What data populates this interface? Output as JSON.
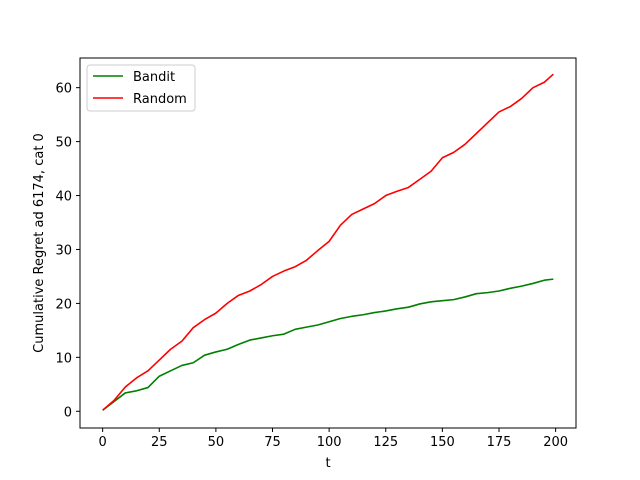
{
  "chart_data": {
    "type": "line",
    "title": "",
    "xlabel": "t",
    "ylabel": "Cumulative Regret ad 6174, cat 0",
    "xlim": [
      -10,
      209
    ],
    "ylim": [
      -3.1,
      65.5
    ],
    "xticks": [
      0,
      25,
      50,
      75,
      100,
      125,
      150,
      175,
      200
    ],
    "yticks": [
      0,
      10,
      20,
      30,
      40,
      50,
      60
    ],
    "grid": false,
    "legend_position": "upper-left",
    "series": [
      {
        "name": "Bandit",
        "color": "#008000",
        "x": [
          0,
          5,
          10,
          15,
          20,
          25,
          30,
          35,
          40,
          45,
          50,
          55,
          60,
          65,
          70,
          75,
          80,
          85,
          90,
          95,
          100,
          105,
          110,
          115,
          120,
          125,
          130,
          135,
          140,
          145,
          150,
          155,
          160,
          165,
          170,
          175,
          180,
          185,
          190,
          195,
          199
        ],
        "values": [
          0.2,
          1.8,
          3.4,
          3.8,
          4.4,
          6.5,
          7.5,
          8.5,
          9.0,
          10.4,
          11.0,
          11.5,
          12.4,
          13.2,
          13.6,
          14.0,
          14.3,
          15.2,
          15.6,
          16.0,
          16.6,
          17.2,
          17.6,
          17.9,
          18.3,
          18.6,
          19.0,
          19.3,
          19.9,
          20.3,
          20.5,
          20.7,
          21.2,
          21.8,
          22.0,
          22.3,
          22.8,
          23.2,
          23.7,
          24.3,
          24.5
        ]
      },
      {
        "name": "Random",
        "color": "#ff0000",
        "x": [
          0,
          5,
          10,
          15,
          20,
          25,
          30,
          35,
          40,
          45,
          50,
          55,
          60,
          65,
          70,
          75,
          80,
          85,
          90,
          95,
          100,
          105,
          110,
          115,
          120,
          125,
          130,
          135,
          140,
          145,
          150,
          155,
          160,
          165,
          170,
          175,
          180,
          185,
          190,
          195,
          199
        ],
        "values": [
          0.2,
          2.0,
          4.5,
          6.2,
          7.5,
          9.5,
          11.5,
          13.0,
          15.5,
          17.0,
          18.2,
          20.0,
          21.5,
          22.3,
          23.5,
          25.0,
          26.0,
          26.8,
          28.0,
          29.8,
          31.5,
          34.5,
          36.5,
          37.5,
          38.5,
          40.0,
          40.8,
          41.5,
          43.0,
          44.5,
          47.0,
          48.0,
          49.5,
          51.5,
          53.5,
          55.5,
          56.5,
          58.0,
          60.0,
          61.0,
          62.5
        ]
      }
    ]
  }
}
